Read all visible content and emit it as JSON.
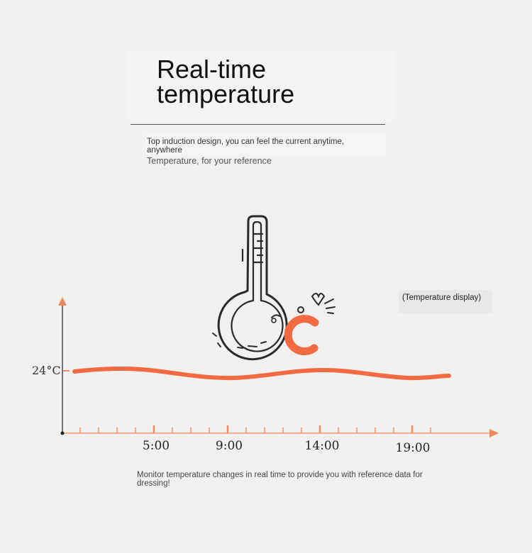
{
  "header": {
    "title_line1": "Real-time",
    "title_line2": "temperature",
    "subtitle": "Top induction design, you can feel the current anytime, anywhere",
    "subtitle2": "Temperature, for your reference"
  },
  "badge": {
    "label": "(Temperature display)"
  },
  "illustration": {
    "icon": "thermometer-icon",
    "unit_symbol": "C",
    "unit_icon": "celsius-icon",
    "accent_color": "#f26a41",
    "outline_color": "#2a2a2a"
  },
  "chart_data": {
    "type": "line",
    "y_label": "24°C",
    "x_tick_labels": [
      "5:00",
      "9:00",
      "14:00",
      "19:00"
    ],
    "series_color": "#f26a41",
    "axis_color": "#f08a5d"
  },
  "footer": {
    "text": "Monitor temperature changes in real time to provide you with reference data for dressing!"
  }
}
